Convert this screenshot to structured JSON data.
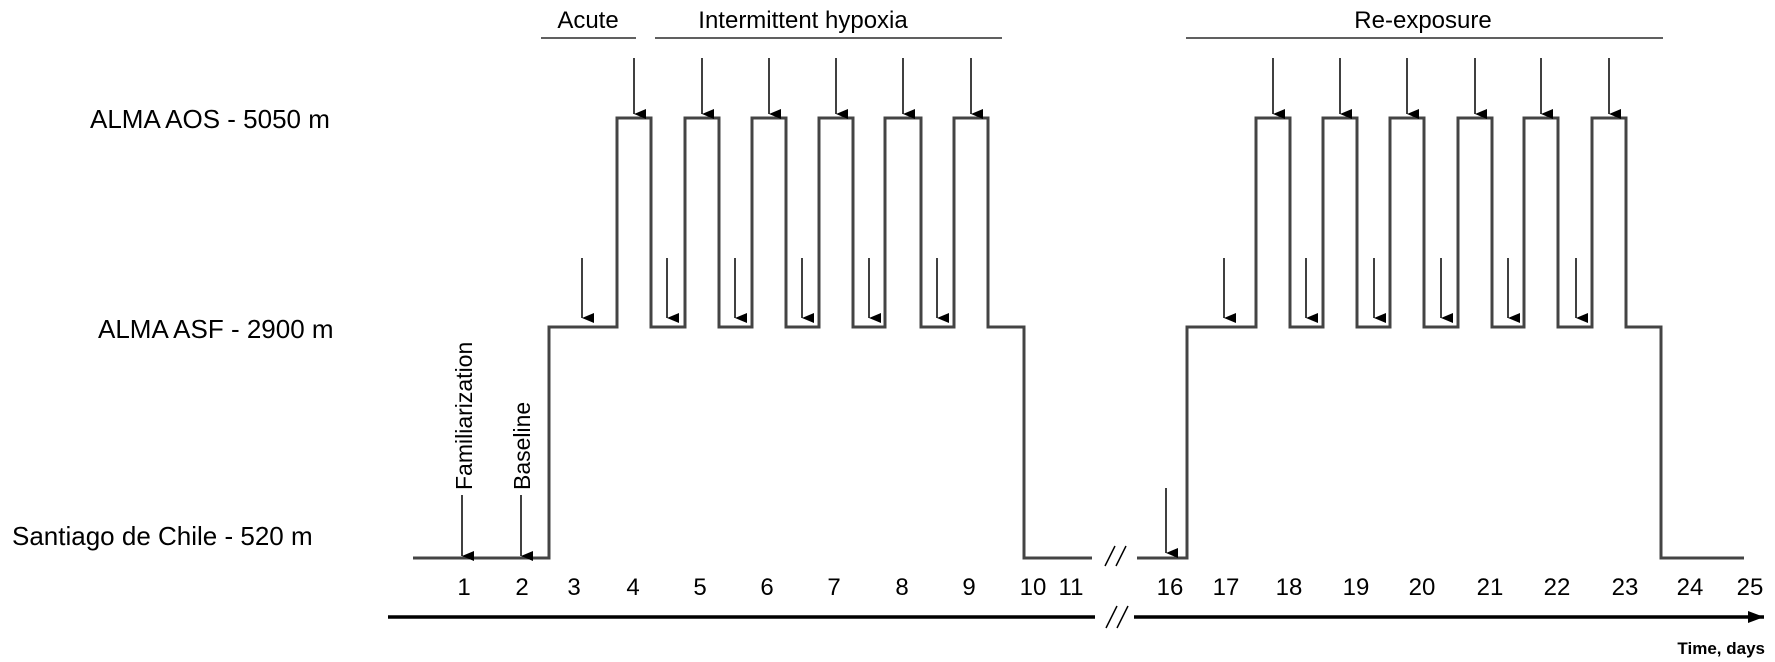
{
  "altitudes": {
    "high": "ALMA AOS - 5050 m",
    "mid": "ALMA ASF - 2900 m",
    "low": "Santiago de Chile - 520 m"
  },
  "phases": {
    "acute": "Acute",
    "intermittent": "Intermittent hypoxia",
    "reexposure": "Re-exposure"
  },
  "markers": {
    "familiarization": "Familiarization",
    "baseline": "Baseline"
  },
  "days_left": [
    "1",
    "2",
    "3",
    "4",
    "5",
    "6",
    "7",
    "8",
    "9",
    "10",
    "11"
  ],
  "days_right": [
    "16",
    "17",
    "18",
    "19",
    "20",
    "21",
    "22",
    "23",
    "24",
    "25"
  ],
  "axis_label": "Time, days"
}
